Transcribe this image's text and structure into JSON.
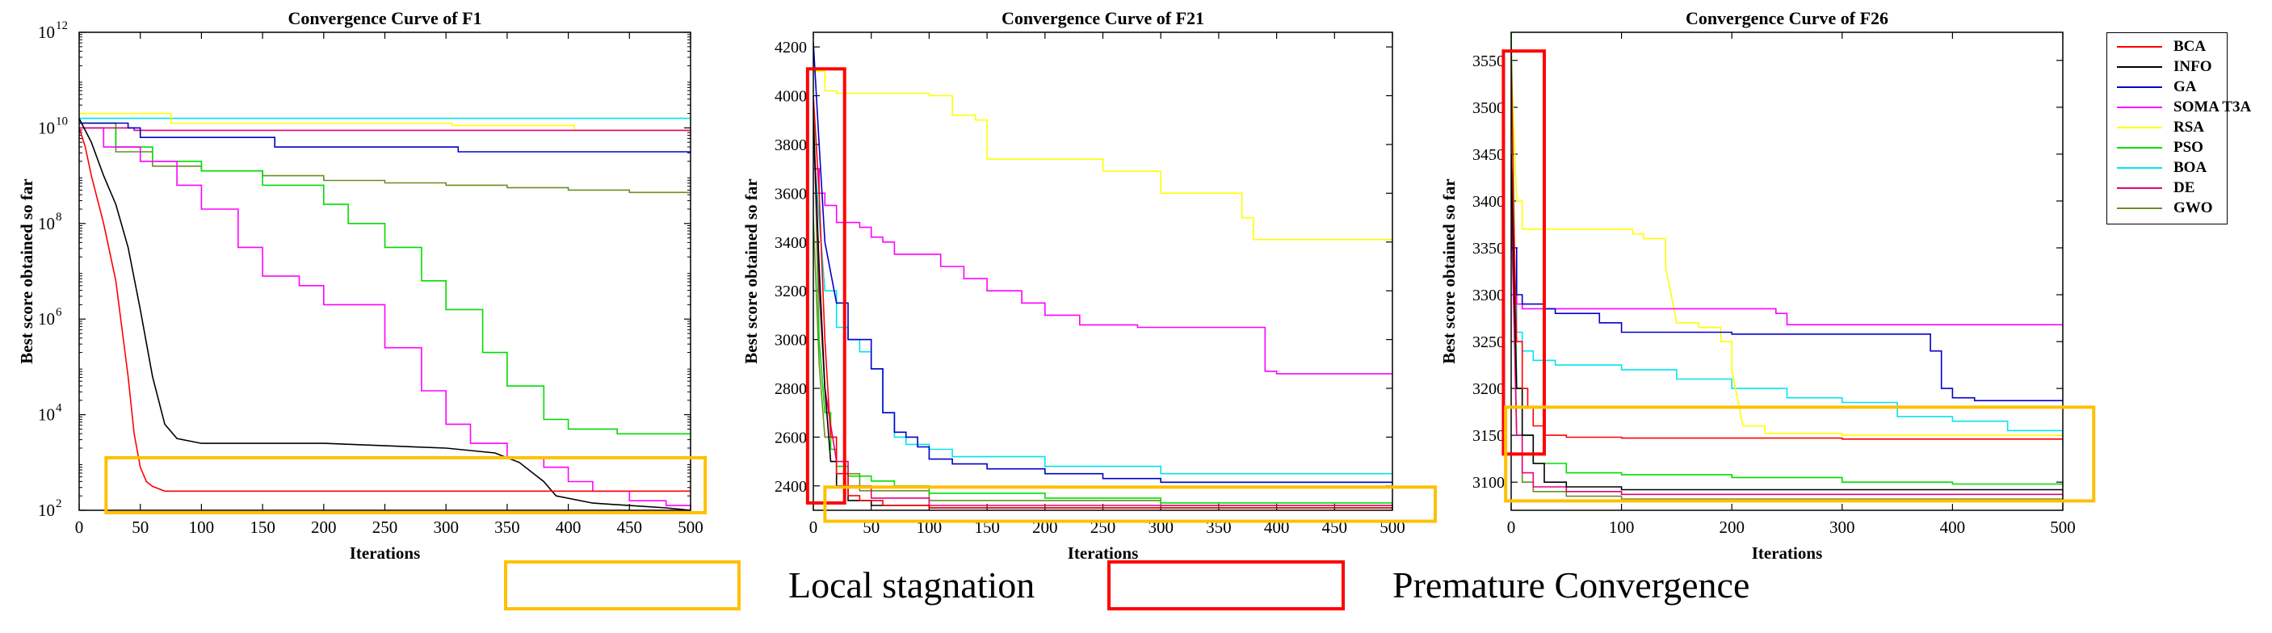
{
  "colors": {
    "BCA": "#ff0000",
    "INFO": "#000000",
    "GA": "#0000cc",
    "SOMA T3A": "#ff00ff",
    "RSA": "#ffff00",
    "PSO": "#00dd00",
    "BOA": "#00e5ee",
    "DE": "#e6007e",
    "GWO": "#6b8e23",
    "stagnation": "#ffc000",
    "premature": "#ff0000"
  },
  "legend": {
    "entries": [
      "BCA",
      "INFO",
      "GA",
      "SOMA T3A",
      "RSA",
      "PSO",
      "BOA",
      "DE",
      "GWO"
    ]
  },
  "key": {
    "stagnation_label": "Local stagnation",
    "premature_label": "Premature Convergence"
  },
  "chart_data": [
    {
      "type": "line",
      "title": "Convergence Curve of F1",
      "xlabel": "Iterations",
      "ylabel": "Best score obtained so far",
      "yscale": "log",
      "xlim": [
        0,
        500
      ],
      "ylim_exp": [
        2,
        12
      ],
      "xticks": [
        "0",
        "50",
        "100",
        "150",
        "200",
        "250",
        "300",
        "350",
        "400",
        "450",
        "500"
      ],
      "ytick_exps": [
        "2",
        "4",
        "6",
        "8",
        "10",
        "12"
      ],
      "series": [
        {
          "name": "BCA",
          "x": [
            0,
            5,
            10,
            20,
            30,
            40,
            45,
            50,
            55,
            60,
            70,
            100,
            500
          ],
          "y": [
            10.0,
            9.6,
            9.0,
            8.0,
            6.8,
            4.8,
            3.6,
            2.9,
            2.6,
            2.5,
            2.4,
            2.4,
            2.4
          ]
        },
        {
          "name": "INFO",
          "x": [
            0,
            10,
            20,
            30,
            40,
            50,
            60,
            70,
            80,
            100,
            200,
            300,
            340,
            360,
            380,
            390,
            420,
            450,
            480,
            500
          ],
          "y": [
            10.2,
            9.7,
            9.0,
            8.4,
            7.5,
            6.2,
            4.8,
            3.8,
            3.5,
            3.4,
            3.4,
            3.3,
            3.2,
            3.0,
            2.6,
            2.3,
            2.15,
            2.1,
            2.05,
            2.0
          ]
        },
        {
          "name": "GA",
          "x": [
            0,
            40,
            50,
            150,
            160,
            300,
            310,
            500
          ],
          "y": [
            10.1,
            10.0,
            9.8,
            9.8,
            9.6,
            9.6,
            9.5,
            9.5
          ]
        },
        {
          "name": "SOMA T3A",
          "x": [
            0,
            20,
            50,
            80,
            100,
            130,
            150,
            180,
            200,
            250,
            280,
            300,
            320,
            350,
            380,
            400,
            420,
            450,
            480,
            500
          ],
          "y": [
            10.0,
            9.6,
            9.3,
            8.8,
            8.3,
            7.5,
            6.9,
            6.7,
            6.3,
            5.4,
            4.5,
            3.8,
            3.4,
            3.1,
            2.9,
            2.6,
            2.4,
            2.2,
            2.1,
            2.0
          ]
        },
        {
          "name": "RSA",
          "x": [
            0,
            70,
            75,
            300,
            305,
            400,
            405,
            500
          ],
          "y": [
            10.3,
            10.3,
            10.1,
            10.1,
            10.05,
            10.05,
            9.95,
            9.9
          ]
        },
        {
          "name": "PSO",
          "x": [
            0,
            30,
            60,
            100,
            150,
            200,
            220,
            250,
            280,
            300,
            330,
            350,
            380,
            400,
            440,
            500
          ],
          "y": [
            10.1,
            9.6,
            9.3,
            9.1,
            8.8,
            8.4,
            8.0,
            7.5,
            6.8,
            6.2,
            5.3,
            4.6,
            3.9,
            3.7,
            3.6,
            3.6
          ]
        },
        {
          "name": "BOA",
          "x": [
            0,
            500
          ],
          "y": [
            10.2,
            10.15
          ]
        },
        {
          "name": "DE",
          "x": [
            0,
            40,
            45,
            500
          ],
          "y": [
            10.0,
            10.0,
            9.95,
            9.95
          ]
        },
        {
          "name": "GWO",
          "x": [
            0,
            30,
            60,
            100,
            150,
            200,
            250,
            300,
            350,
            400,
            450,
            500
          ],
          "y": [
            10.1,
            9.5,
            9.2,
            9.1,
            9.0,
            8.9,
            8.85,
            8.8,
            8.75,
            8.7,
            8.65,
            8.6
          ]
        }
      ],
      "highlight": [
        {
          "kind": "stagnation",
          "x": [
            22,
            512
          ],
          "y": [
            1.95,
            3.1
          ]
        }
      ]
    },
    {
      "type": "line",
      "title": "Convergence Curve of F21",
      "xlabel": "Iterations",
      "ylabel": "Best score obtained so far",
      "yscale": "linear",
      "xlim": [
        0,
        500
      ],
      "ylim": [
        2300,
        4260
      ],
      "xticks": [
        "0",
        "50",
        "100",
        "150",
        "200",
        "250",
        "300",
        "350",
        "400",
        "450",
        "500"
      ],
      "yticks": [
        "2400",
        "2600",
        "2800",
        "3000",
        "3200",
        "3400",
        "3600",
        "3800",
        "4000",
        "4200"
      ],
      "series": [
        {
          "name": "BCA",
          "x": [
            0,
            5,
            10,
            15,
            20,
            30,
            40,
            60,
            100,
            500
          ],
          "y": [
            4000,
            3600,
            3000,
            2600,
            2450,
            2360,
            2340,
            2320,
            2310,
            2310
          ]
        },
        {
          "name": "INFO",
          "x": [
            0,
            5,
            10,
            15,
            20,
            30,
            50,
            100,
            500
          ],
          "y": [
            3900,
            3300,
            2800,
            2500,
            2400,
            2340,
            2320,
            2310,
            2305
          ]
        },
        {
          "name": "GA",
          "x": [
            0,
            5,
            10,
            20,
            30,
            50,
            60,
            70,
            80,
            90,
            100,
            120,
            150,
            200,
            250,
            300,
            500
          ],
          "y": [
            4220,
            3800,
            3400,
            3150,
            3000,
            2880,
            2700,
            2620,
            2600,
            2560,
            2510,
            2490,
            2470,
            2450,
            2430,
            2415,
            2410
          ]
        },
        {
          "name": "SOMA T3A",
          "x": [
            0,
            5,
            10,
            20,
            40,
            50,
            60,
            70,
            100,
            110,
            130,
            150,
            180,
            200,
            230,
            280,
            380,
            390,
            400,
            500
          ],
          "y": [
            3700,
            3600,
            3550,
            3480,
            3460,
            3420,
            3400,
            3350,
            3350,
            3300,
            3250,
            3200,
            3150,
            3100,
            3060,
            3050,
            3050,
            2870,
            2860,
            2860
          ]
        },
        {
          "name": "RSA",
          "x": [
            0,
            10,
            20,
            100,
            120,
            140,
            150,
            200,
            250,
            300,
            350,
            370,
            380,
            500
          ],
          "y": [
            4100,
            4020,
            4010,
            4000,
            3920,
            3900,
            3740,
            3740,
            3690,
            3600,
            3600,
            3500,
            3410,
            3410
          ]
        },
        {
          "name": "PSO",
          "x": [
            0,
            5,
            10,
            15,
            20,
            30,
            50,
            70,
            100,
            200,
            300,
            500
          ],
          "y": [
            4000,
            3000,
            2700,
            2550,
            2480,
            2440,
            2420,
            2400,
            2370,
            2350,
            2330,
            2320
          ]
        },
        {
          "name": "BOA",
          "x": [
            0,
            10,
            20,
            30,
            40,
            50,
            60,
            70,
            80,
            100,
            120,
            200,
            300,
            500
          ],
          "y": [
            3800,
            3200,
            3050,
            3000,
            2950,
            2880,
            2700,
            2600,
            2570,
            2550,
            2520,
            2480,
            2450,
            2440
          ]
        },
        {
          "name": "DE",
          "x": [
            0,
            5,
            10,
            20,
            30,
            50,
            100,
            500
          ],
          "y": [
            3900,
            3200,
            2800,
            2500,
            2400,
            2350,
            2320,
            2310
          ]
        },
        {
          "name": "GWO",
          "x": [
            0,
            5,
            10,
            20,
            40,
            100,
            300,
            500
          ],
          "y": [
            3500,
            2900,
            2600,
            2450,
            2380,
            2340,
            2320,
            2315
          ]
        }
      ],
      "highlight": [
        {
          "kind": "premature",
          "x": [
            -5,
            27
          ],
          "y": [
            2330,
            4110
          ]
        },
        {
          "kind": "stagnation",
          "x": [
            10,
            537
          ],
          "y": [
            2255,
            2395
          ]
        }
      ]
    },
    {
      "type": "line",
      "title": "Convergence Curve of F26",
      "xlabel": "Iterations",
      "ylabel": "Best score obtained so far",
      "yscale": "linear",
      "xlim": [
        0,
        500
      ],
      "ylim": [
        3070,
        3580
      ],
      "xticks": [
        "0",
        "100",
        "200",
        "300",
        "400",
        "500"
      ],
      "yticks": [
        "3100",
        "3150",
        "3200",
        "3250",
        "3300",
        "3350",
        "3400",
        "3450",
        "3500",
        "3550"
      ],
      "series": [
        {
          "name": "BCA",
          "x": [
            0,
            2,
            5,
            10,
            15,
            20,
            30,
            50,
            100,
            300,
            500
          ],
          "y": [
            3560,
            3400,
            3250,
            3200,
            3180,
            3160,
            3150,
            3148,
            3147,
            3146,
            3146
          ]
        },
        {
          "name": "INFO",
          "x": [
            0,
            5,
            10,
            20,
            30,
            50,
            100,
            500
          ],
          "y": [
            3450,
            3200,
            3150,
            3120,
            3100,
            3095,
            3092,
            3090
          ]
        },
        {
          "name": "GA",
          "x": [
            0,
            5,
            10,
            30,
            40,
            80,
            100,
            200,
            300,
            380,
            390,
            400,
            420,
            500
          ],
          "y": [
            3350,
            3300,
            3290,
            3285,
            3280,
            3270,
            3260,
            3258,
            3258,
            3240,
            3200,
            3190,
            3187,
            3187
          ]
        },
        {
          "name": "SOMA T3A",
          "x": [
            0,
            5,
            10,
            200,
            240,
            250,
            500
          ],
          "y": [
            3300,
            3290,
            3285,
            3285,
            3280,
            3268,
            3268
          ]
        },
        {
          "name": "RSA",
          "x": [
            0,
            5,
            10,
            100,
            110,
            120,
            140,
            150,
            170,
            190,
            200,
            210,
            230,
            300,
            500
          ],
          "y": [
            3550,
            3400,
            3370,
            3370,
            3365,
            3360,
            3330,
            3270,
            3265,
            3250,
            3220,
            3160,
            3152,
            3150,
            3150
          ]
        },
        {
          "name": "PSO",
          "x": [
            0,
            5,
            10,
            20,
            50,
            100,
            200,
            300,
            400,
            500
          ],
          "y": [
            3580,
            3200,
            3150,
            3120,
            3110,
            3108,
            3105,
            3100,
            3098,
            3095
          ]
        },
        {
          "name": "BOA",
          "x": [
            0,
            5,
            10,
            20,
            40,
            100,
            150,
            200,
            250,
            300,
            350,
            400,
            450,
            500
          ],
          "y": [
            3300,
            3260,
            3240,
            3230,
            3225,
            3220,
            3210,
            3200,
            3190,
            3185,
            3170,
            3165,
            3155,
            3140
          ]
        },
        {
          "name": "DE",
          "x": [
            0,
            5,
            10,
            20,
            50,
            100,
            500
          ],
          "y": [
            3400,
            3150,
            3110,
            3095,
            3090,
            3087,
            3085
          ]
        },
        {
          "name": "GWO",
          "x": [
            0,
            5,
            10,
            20,
            50,
            100,
            500
          ],
          "y": [
            3450,
            3150,
            3100,
            3090,
            3085,
            3082,
            3080
          ]
        }
      ],
      "highlight": [
        {
          "kind": "premature",
          "x": [
            -7,
            30
          ],
          "y": [
            3130,
            3560
          ]
        },
        {
          "kind": "stagnation",
          "x": [
            -5,
            528
          ],
          "y": [
            3080,
            3180
          ]
        }
      ]
    }
  ]
}
